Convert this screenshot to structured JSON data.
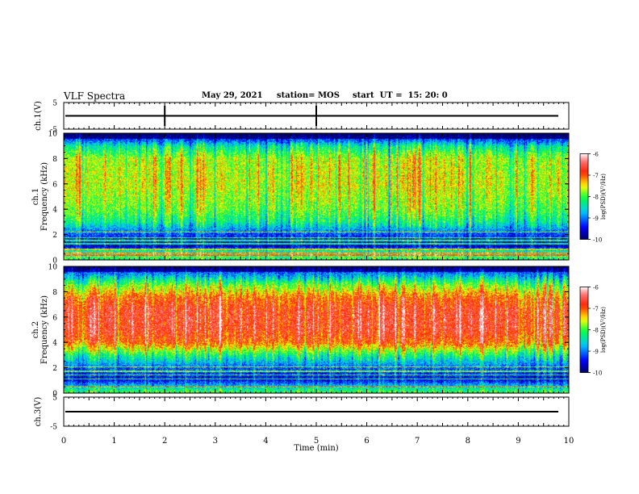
{
  "header": {
    "title": "VLF Spectra",
    "date": "May 29, 2021",
    "station": "station= MOS",
    "start": "start  UT =  15: 20: 0"
  },
  "chart_data": [
    {
      "type": "line",
      "name": "ch1-waveform",
      "ylabel": "ch.1(V)",
      "ylim": [
        -5,
        5
      ],
      "yticks": [
        "5",
        "-5"
      ],
      "x": [
        0,
        10
      ],
      "values": [
        0,
        0
      ]
    },
    {
      "type": "heatmap",
      "name": "ch1-spectrogram",
      "ylabel_lines": [
        "ch.1",
        "Frequency (kHz)"
      ],
      "ylim": [
        0,
        10
      ],
      "yticks": [
        "0",
        "2",
        "4",
        "6",
        "8",
        "10"
      ],
      "xlim": [
        0,
        9.85
      ],
      "colorbar": {
        "label": "log(PSD)(V²/Hz)",
        "range": [
          -10,
          -6
        ],
        "ticks": [
          "-6",
          "-7",
          "-8",
          "-9",
          "-10"
        ],
        "colors": [
          "#000066",
          "#0000ff",
          "#00c8ff",
          "#00ff44",
          "#ffff00",
          "#ff2000",
          "#ffffff"
        ]
      },
      "profile": [
        {
          "f": 0.0,
          "v": -8.2
        },
        {
          "f": 0.5,
          "v": -7.8
        },
        {
          "f": 1.0,
          "v": -9.6
        },
        {
          "f": 2.0,
          "v": -9.2
        },
        {
          "f": 3.0,
          "v": -8.3
        },
        {
          "f": 4.0,
          "v": -7.9
        },
        {
          "f": 6.0,
          "v": -7.6
        },
        {
          "f": 8.0,
          "v": -7.7
        },
        {
          "f": 9.0,
          "v": -8.4
        },
        {
          "f": 9.5,
          "v": -9.2
        },
        {
          "f": 10.0,
          "v": -9.6
        }
      ]
    },
    {
      "type": "heatmap",
      "name": "ch2-spectrogram",
      "ylabel_lines": [
        "ch.2",
        "Frequency (kHz)"
      ],
      "ylim": [
        0,
        10
      ],
      "yticks": [
        "0",
        "2",
        "4",
        "6",
        "8",
        "10"
      ],
      "xlim": [
        0,
        9.85
      ],
      "colorbar": {
        "label": "log(PSD)(V²/Hz)",
        "range": [
          -10,
          -6
        ],
        "ticks": [
          "-6",
          "-7",
          "-8",
          "-9",
          "-10"
        ],
        "colors": [
          "#000066",
          "#0000ff",
          "#00c8ff",
          "#00ff44",
          "#ffff00",
          "#ff2000",
          "#ffffff"
        ]
      },
      "profile": [
        {
          "f": 0.0,
          "v": -8.0
        },
        {
          "f": 0.5,
          "v": -8.6
        },
        {
          "f": 1.0,
          "v": -9.5
        },
        {
          "f": 2.0,
          "v": -9.1
        },
        {
          "f": 3.0,
          "v": -8.2
        },
        {
          "f": 4.0,
          "v": -7.0
        },
        {
          "f": 5.0,
          "v": -6.7
        },
        {
          "f": 6.5,
          "v": -6.7
        },
        {
          "f": 7.5,
          "v": -7.0
        },
        {
          "f": 8.5,
          "v": -7.8
        },
        {
          "f": 9.3,
          "v": -8.8
        },
        {
          "f": 10.0,
          "v": -9.5
        }
      ]
    },
    {
      "type": "line",
      "name": "ch3-waveform",
      "ylabel": "ch.3(V)",
      "ylim": [
        -5,
        5
      ],
      "yticks": [
        "5",
        "-5"
      ],
      "x": [
        0,
        10
      ],
      "values": [
        0,
        0
      ]
    }
  ],
  "x_axis": {
    "label": "Time  (min)",
    "range": [
      0,
      10
    ],
    "ticks": [
      "0",
      "1",
      "2",
      "3",
      "4",
      "5",
      "6",
      "7",
      "8",
      "9",
      "10"
    ]
  }
}
